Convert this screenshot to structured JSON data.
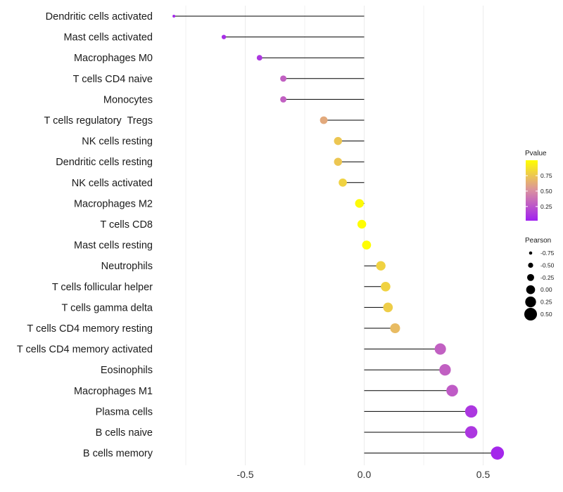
{
  "chart_data": {
    "type": "lollipop",
    "title": "",
    "xlabel": "",
    "ylabel": "",
    "xlim": [
      -0.8,
      0.7
    ],
    "xticks": [
      -0.5,
      0.0,
      0.5
    ],
    "xtick_labels": [
      "-0.5",
      "0.0",
      "0.5"
    ],
    "grid": true,
    "legend_position": "right",
    "categories": [
      "Dendritic cells activated",
      "Mast cells activated",
      "Macrophages M0",
      "T cells CD4 naive",
      "Monocytes",
      "T cells regulatory  Tregs",
      "NK cells resting",
      "Dendritic cells resting",
      "NK cells activated",
      "Macrophages M2",
      "T cells CD8",
      "Mast cells resting",
      "Neutrophils",
      "T cells follicular helper",
      "T cells gamma delta",
      "T cells CD4 memory resting",
      "T cells CD4 memory activated",
      "Eosinophils",
      "Macrophages M1",
      "Plasma cells",
      "B cells naive",
      "B cells memory"
    ],
    "pearson": [
      -0.8,
      -0.59,
      -0.44,
      -0.34,
      -0.34,
      -0.17,
      -0.11,
      -0.11,
      -0.09,
      -0.02,
      -0.01,
      0.01,
      0.07,
      0.09,
      0.1,
      0.13,
      0.32,
      0.34,
      0.37,
      0.45,
      0.45,
      0.56
    ],
    "pvalue": [
      0.05,
      0.08,
      0.12,
      0.3,
      0.3,
      0.62,
      0.75,
      0.75,
      0.8,
      0.98,
      0.99,
      0.99,
      0.8,
      0.8,
      0.78,
      0.7,
      0.3,
      0.3,
      0.28,
      0.12,
      0.12,
      0.05
    ],
    "legends": {
      "color": {
        "title": "Pvalue",
        "ticks": [
          0.25,
          0.5,
          0.75
        ],
        "tick_labels": [
          "0.25",
          "0.50",
          "0.75"
        ],
        "range": [
          0.02,
          1.0
        ],
        "low_color": "#a020f0",
        "mid_color": "#da90a0",
        "high_color": "#ffff00"
      },
      "size": {
        "title": "Pearson",
        "values": [
          -0.75,
          -0.5,
          -0.25,
          0.0,
          0.25,
          0.5
        ],
        "labels": [
          "-0.75",
          "-0.50",
          "-0.25",
          "0.00",
          "0.25",
          "0.50"
        ]
      }
    }
  }
}
